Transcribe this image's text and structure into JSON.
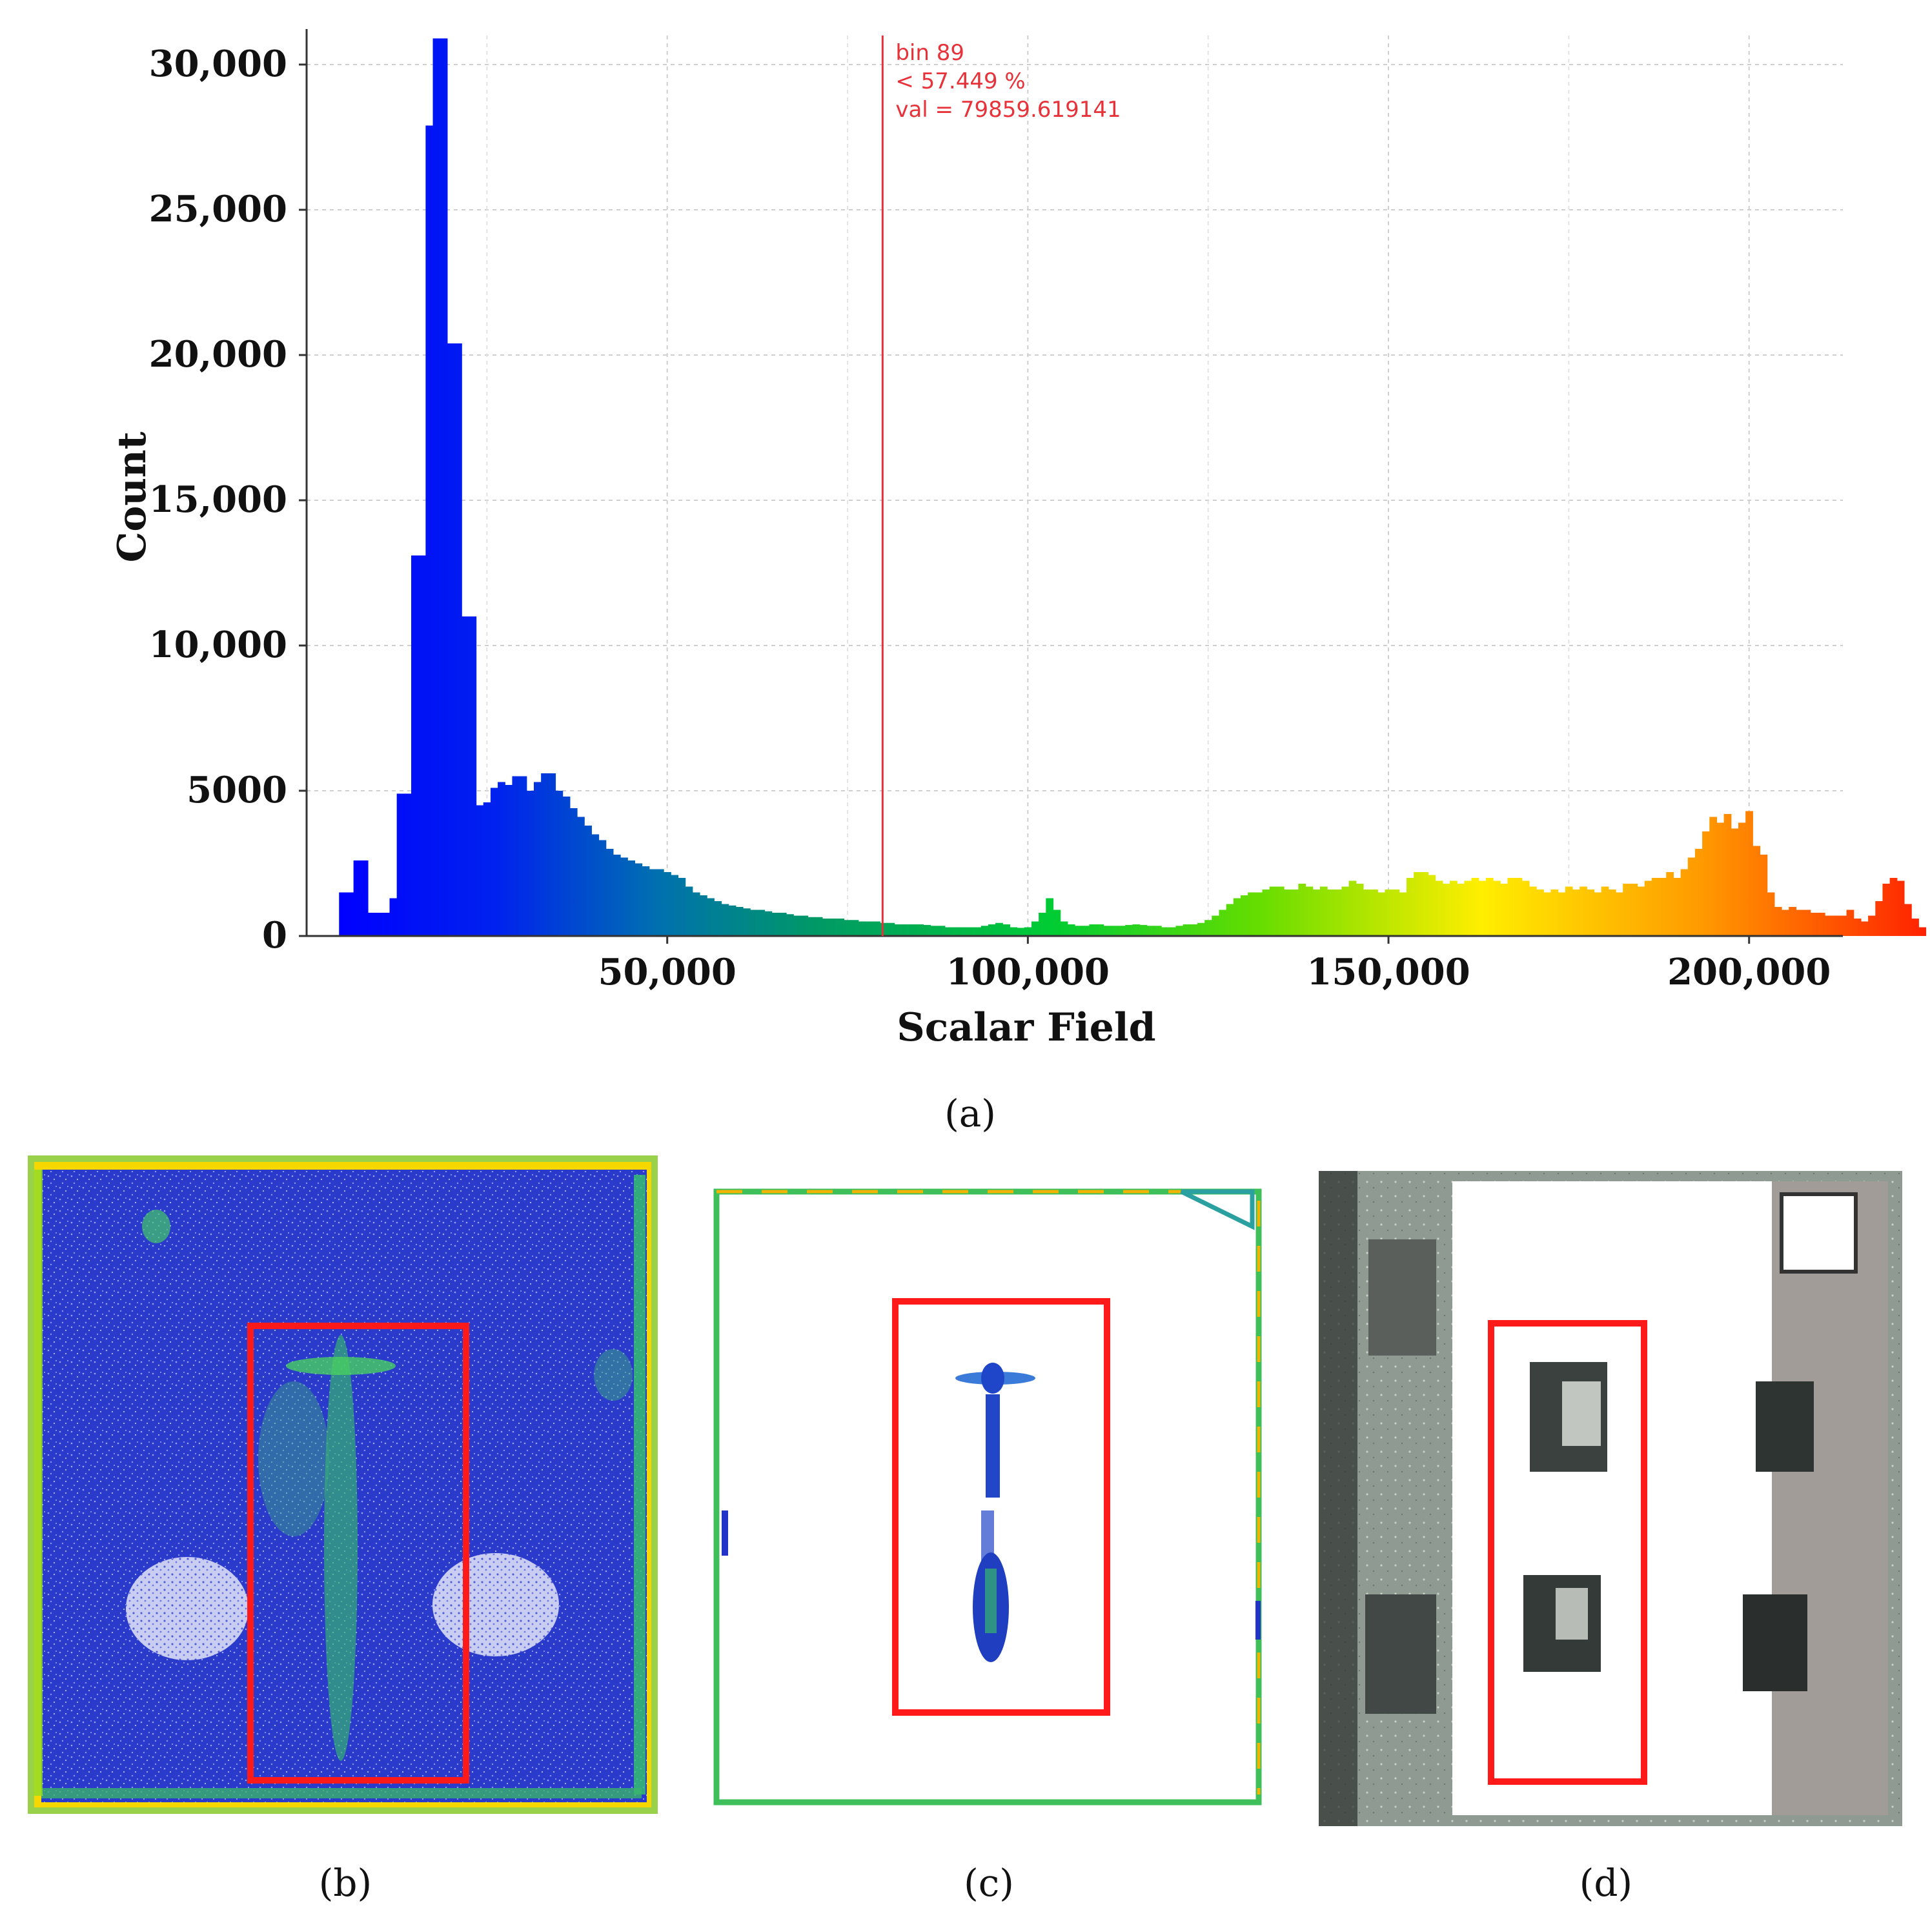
{
  "chart_data": {
    "type": "bar",
    "xlabel": "Scalar Field",
    "ylabel": "Count",
    "xlim": [
      0,
      213000
    ],
    "ylim": [
      0,
      31000
    ],
    "xticks": [
      50000,
      100000,
      150000,
      200000
    ],
    "xtick_labels": [
      "50,000",
      "100,000",
      "150,000",
      "200,000"
    ],
    "yticks": [
      0,
      5000,
      10000,
      15000,
      20000,
      25000,
      30000
    ],
    "ytick_labels": [
      "0",
      "5000",
      "10,000",
      "15,000",
      "20,000",
      "25,000",
      "30,000"
    ],
    "grid": true,
    "colormap": [
      "#0000ff",
      "#0066cc",
      "#009966",
      "#00cc33",
      "#66dd00",
      "#ffee00",
      "#ff9900",
      "#ff2200"
    ],
    "bin_start": 4500,
    "bin_width": 1000,
    "values": [
      1500,
      1500,
      2600,
      2600,
      800,
      800,
      800,
      1300,
      4900,
      4900,
      13100,
      13100,
      27900,
      30900,
      30900,
      20400,
      20400,
      11000,
      11000,
      4500,
      4600,
      5100,
      5300,
      5200,
      5500,
      5500,
      5000,
      5300,
      5600,
      5600,
      5000,
      4800,
      4400,
      4100,
      3800,
      3500,
      3300,
      3000,
      2800,
      2700,
      2600,
      2500,
      2400,
      2300,
      2300,
      2200,
      2100,
      2000,
      1700,
      1500,
      1400,
      1300,
      1200,
      1100,
      1050,
      1000,
      950,
      900,
      900,
      850,
      800,
      800,
      750,
      700,
      700,
      650,
      650,
      600,
      600,
      600,
      550,
      550,
      500,
      500,
      500,
      450,
      450,
      400,
      400,
      400,
      400,
      380,
      350,
      350,
      300,
      300,
      300,
      300,
      300,
      350,
      400,
      450,
      400,
      300,
      280,
      300,
      500,
      800,
      1300,
      900,
      500,
      400,
      350,
      350,
      400,
      400,
      350,
      350,
      350,
      380,
      400,
      380,
      350,
      350,
      300,
      300,
      350,
      400,
      400,
      450,
      550,
      700,
      900,
      1100,
      1300,
      1400,
      1500,
      1500,
      1600,
      1700,
      1700,
      1600,
      1600,
      1800,
      1700,
      1600,
      1700,
      1600,
      1600,
      1700,
      1900,
      1800,
      1600,
      1600,
      1500,
      1600,
      1600,
      1500,
      2000,
      2200,
      2200,
      2100,
      1900,
      1800,
      1900,
      1800,
      1900,
      2000,
      1900,
      2000,
      1900,
      1800,
      2000,
      2000,
      1900,
      1700,
      1600,
      1500,
      1600,
      1500,
      1700,
      1600,
      1700,
      1600,
      1500,
      1700,
      1600,
      1500,
      1800,
      1800,
      1700,
      1900,
      2000,
      2000,
      2200,
      2000,
      2300,
      2700,
      3000,
      3600,
      4100,
      3900,
      4200,
      3700,
      3900,
      4300,
      3100,
      2800,
      1500,
      1000,
      900,
      1000,
      900,
      900,
      800,
      800,
      700,
      700,
      700,
      900,
      600,
      500,
      700,
      1200,
      1800,
      2000,
      1900,
      1100,
      600,
      300
    ],
    "cursor": {
      "x": 79859.619141,
      "color": "#e8323a"
    },
    "annotation": [
      "bin 89",
      "< 57.449 %",
      "val = 79859.619141"
    ]
  },
  "panel_labels": {
    "a": "(a)",
    "b": "(b)",
    "c": "(c)",
    "d": "(d)"
  },
  "colors": {
    "highlight_box": "#ff1a1a",
    "cloud_blue": "#2233c8",
    "scan_floor": "#8e9a92"
  }
}
